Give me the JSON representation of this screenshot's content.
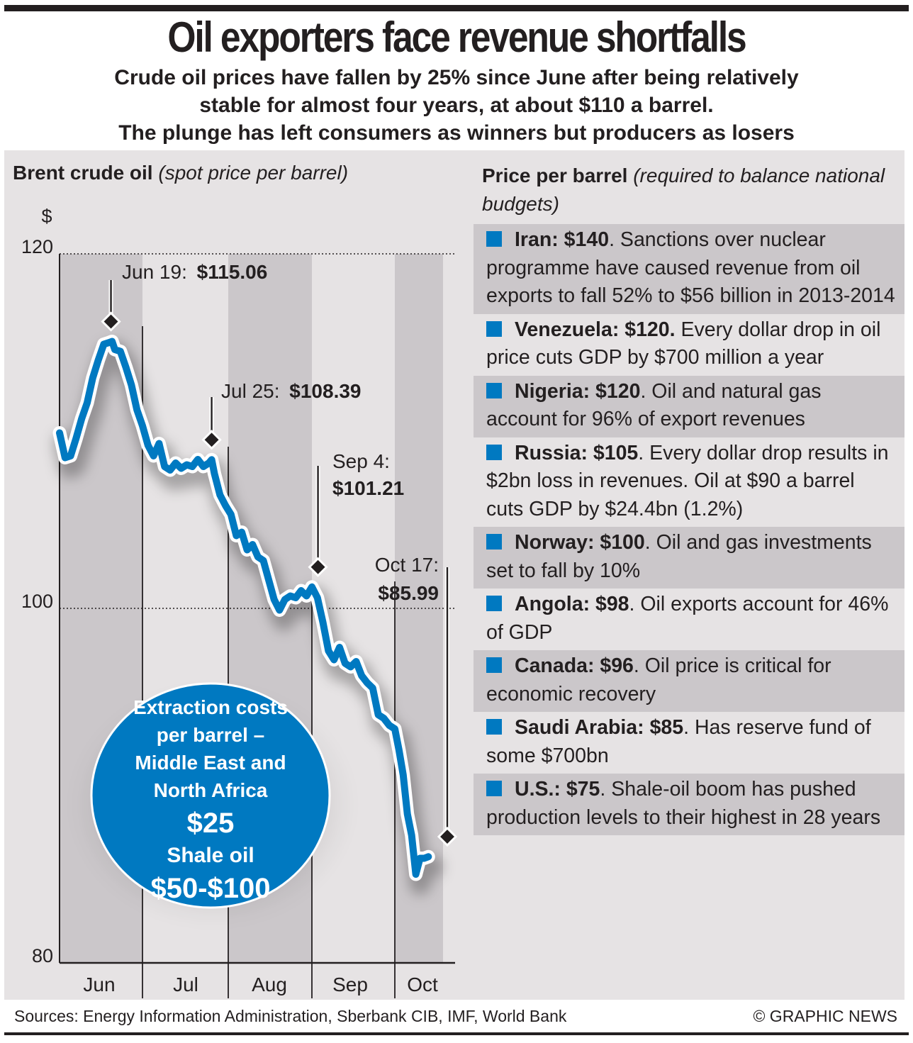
{
  "header": {
    "title": "Oil exporters face revenue shortfalls",
    "subtitle_lines": [
      "Crude oil prices have fallen by 25% since June after being relatively",
      "stable for almost four years, at about $110 a barrel.",
      "The plunge has left consumers as winners but producers as losers"
    ]
  },
  "left_panel": {
    "title_bold": "Brent crude oil",
    "title_italic": "(spot price per barrel)"
  },
  "chart_data": {
    "type": "line",
    "title": "Brent crude oil (spot price per barrel)",
    "xlabel": "",
    "ylabel": "$",
    "ylim": [
      80,
      120
    ],
    "yticks": [
      80,
      100,
      120
    ],
    "ytick_labels": [
      "80",
      "100",
      "120"
    ],
    "grid": "dotted horizontal lines at 100 and 120",
    "categories": [
      "Jun",
      "Jul",
      "Aug",
      "Sep",
      "Oct"
    ],
    "month_length_days": [
      30,
      31,
      31,
      30,
      23
    ],
    "series": [
      {
        "name": "Brent spot price",
        "color": "#0079c1",
        "x_day": [
          0,
          2,
          4,
          6,
          8,
          10,
          12,
          14,
          16,
          18,
          19,
          20,
          22,
          24,
          26,
          28,
          30,
          32,
          34,
          36,
          38,
          40,
          42,
          44,
          46,
          48,
          50,
          52,
          54,
          55,
          56,
          58,
          60,
          62,
          64,
          66,
          68,
          70,
          72,
          74,
          76,
          78,
          80,
          82,
          84,
          86,
          88,
          90,
          92,
          94,
          96,
          98,
          100,
          102,
          104,
          106,
          108,
          110,
          112,
          114,
          116,
          118,
          120,
          122,
          124,
          126,
          128,
          130,
          132,
          134,
          136,
          138
        ],
        "values": [
          109.9,
          108.5,
          108.6,
          109.6,
          110.7,
          111.6,
          113.0,
          114.0,
          114.9,
          115.0,
          115.06,
          114.6,
          114.5,
          113.6,
          112.6,
          111.2,
          110.3,
          109.2,
          108.6,
          109.3,
          108.0,
          107.8,
          108.2,
          107.9,
          108.1,
          108.0,
          108.4,
          108.0,
          108.2,
          108.39,
          107.6,
          106.4,
          105.8,
          105.3,
          104.1,
          104.3,
          103.3,
          103.6,
          102.9,
          102.7,
          101.6,
          100.5,
          99.9,
          100.5,
          100.7,
          100.6,
          101.0,
          100.7,
          101.21,
          100.6,
          99.2,
          97.6,
          97.1,
          97.8,
          96.9,
          96.7,
          97.0,
          96.2,
          95.8,
          95.5,
          94.0,
          93.8,
          93.4,
          93.2,
          92.0,
          90.6,
          88.4,
          87.2,
          85.0,
          85.9,
          85.9,
          85.99
        ]
      }
    ],
    "annotations": [
      {
        "date": "Jun 19",
        "label_date": "Jun 19:",
        "label_value": "$115.06",
        "value": 115.06
      },
      {
        "date": "Jul 25",
        "label_date": "Jul 25:",
        "label_value": "$108.39",
        "value": 108.39
      },
      {
        "date": "Sep 4",
        "label_date": "Sep 4:",
        "label_value": "$101.21",
        "value": 101.21
      },
      {
        "date": "Oct 17",
        "label_date": "Oct 17:",
        "label_value": "$85.99",
        "value": 85.99
      }
    ],
    "callout": {
      "lines": [
        "Extraction costs",
        "per barrel –",
        "Middle East and",
        "North Africa"
      ],
      "mena_value": "$25",
      "shale_label": "Shale oil",
      "shale_value": "$50-$100"
    }
  },
  "right_panel": {
    "title_bold": "Price per barrel",
    "title_italic": "(required to balance national budgets)",
    "items": [
      {
        "country": "Iran: $140",
        "price": 140,
        "text": ". Sanctions over nuclear programme have caused revenue from oil exports to fall 52% to $56 billion in 2013-2014",
        "shaded": true
      },
      {
        "country": "Venezuela: $120.",
        "price": 120,
        "text": " Every dollar drop in oil price cuts GDP by $700 million a year",
        "shaded": false
      },
      {
        "country": "Nigeria: $120",
        "price": 120,
        "text": ". Oil and natural gas account for 96% of export revenues",
        "shaded": true
      },
      {
        "country": "Russia: $105",
        "price": 105,
        "text": ". Every dollar drop results in $2bn loss in revenues. Oil at $90 a barrel cuts GDP by $24.4bn (1.2%)",
        "shaded": false
      },
      {
        "country": "Norway: $100",
        "price": 100,
        "text": ". Oil and gas investments set to fall by 10%",
        "shaded": true
      },
      {
        "country": "Angola: $98",
        "price": 98,
        "text": ". Oil exports account for 46% of GDP",
        "shaded": false
      },
      {
        "country": "Canada: $96",
        "price": 96,
        "text": ". Oil price is critical for economic recovery",
        "shaded": true
      },
      {
        "country": "Saudi Arabia: $85",
        "price": 85,
        "text": ". Has reserve fund of some $700bn",
        "shaded": false
      },
      {
        "country": "U.S.: $75",
        "price": 75,
        "text": ". Shale-oil boom has pushed production levels to their highest in 28 years",
        "shaded": true
      }
    ]
  },
  "footer": {
    "sources": "Sources: Energy Information Administration, Sberbank CIB, IMF, World Bank",
    "copyright": "© GRAPHIC NEWS"
  },
  "colors": {
    "accent_blue": "#0079c1",
    "panel_bg": "#e6e3e4",
    "shaded_bg": "#cbc7ca",
    "text": "#231f20"
  }
}
